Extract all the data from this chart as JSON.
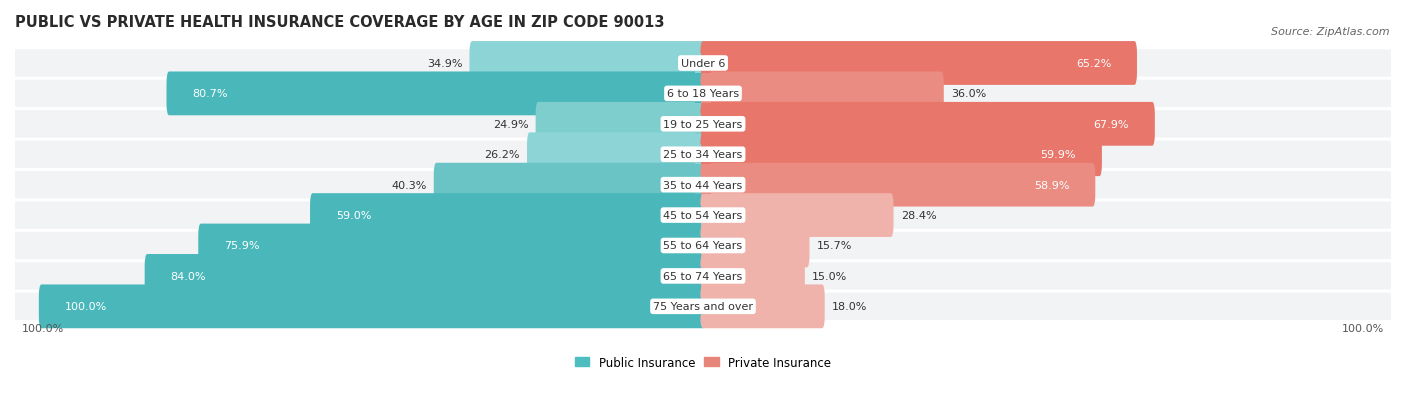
{
  "title": "PUBLIC VS PRIVATE HEALTH INSURANCE COVERAGE BY AGE IN ZIP CODE 90013",
  "source": "Source: ZipAtlas.com",
  "categories": [
    "Under 6",
    "6 to 18 Years",
    "19 to 25 Years",
    "25 to 34 Years",
    "35 to 44 Years",
    "45 to 54 Years",
    "55 to 64 Years",
    "65 to 74 Years",
    "75 Years and over"
  ],
  "public_values": [
    34.9,
    80.7,
    24.9,
    26.2,
    40.3,
    59.0,
    75.9,
    84.0,
    100.0
  ],
  "private_values": [
    65.2,
    36.0,
    67.9,
    59.9,
    58.9,
    28.4,
    15.7,
    15.0,
    18.0
  ],
  "public_colors": [
    "#6ec6c8",
    "#4ab8bb",
    "#8dd4d6",
    "#8dd4d6",
    "#7ecbcd",
    "#5ec0c3",
    "#4ab8bb",
    "#41b5b8",
    "#3ab2b5"
  ],
  "private_colors": [
    "#e8766b",
    "#f0b3ac",
    "#e8766b",
    "#e07a6f",
    "#e07a6f",
    "#f0b3ac",
    "#f0b3ac",
    "#f0b3ac",
    "#f0b3ac"
  ],
  "public_color": "#4dbdbf",
  "private_color": "#e8857a",
  "private_light_color": "#f0b3ac",
  "bg_color": "#ffffff",
  "row_bg_color": "#f2f3f5",
  "title_fontsize": 10.5,
  "source_fontsize": 8,
  "bar_label_fontsize": 8,
  "cat_label_fontsize": 8,
  "legend_fontsize": 8.5,
  "axis_label_fontsize": 8
}
